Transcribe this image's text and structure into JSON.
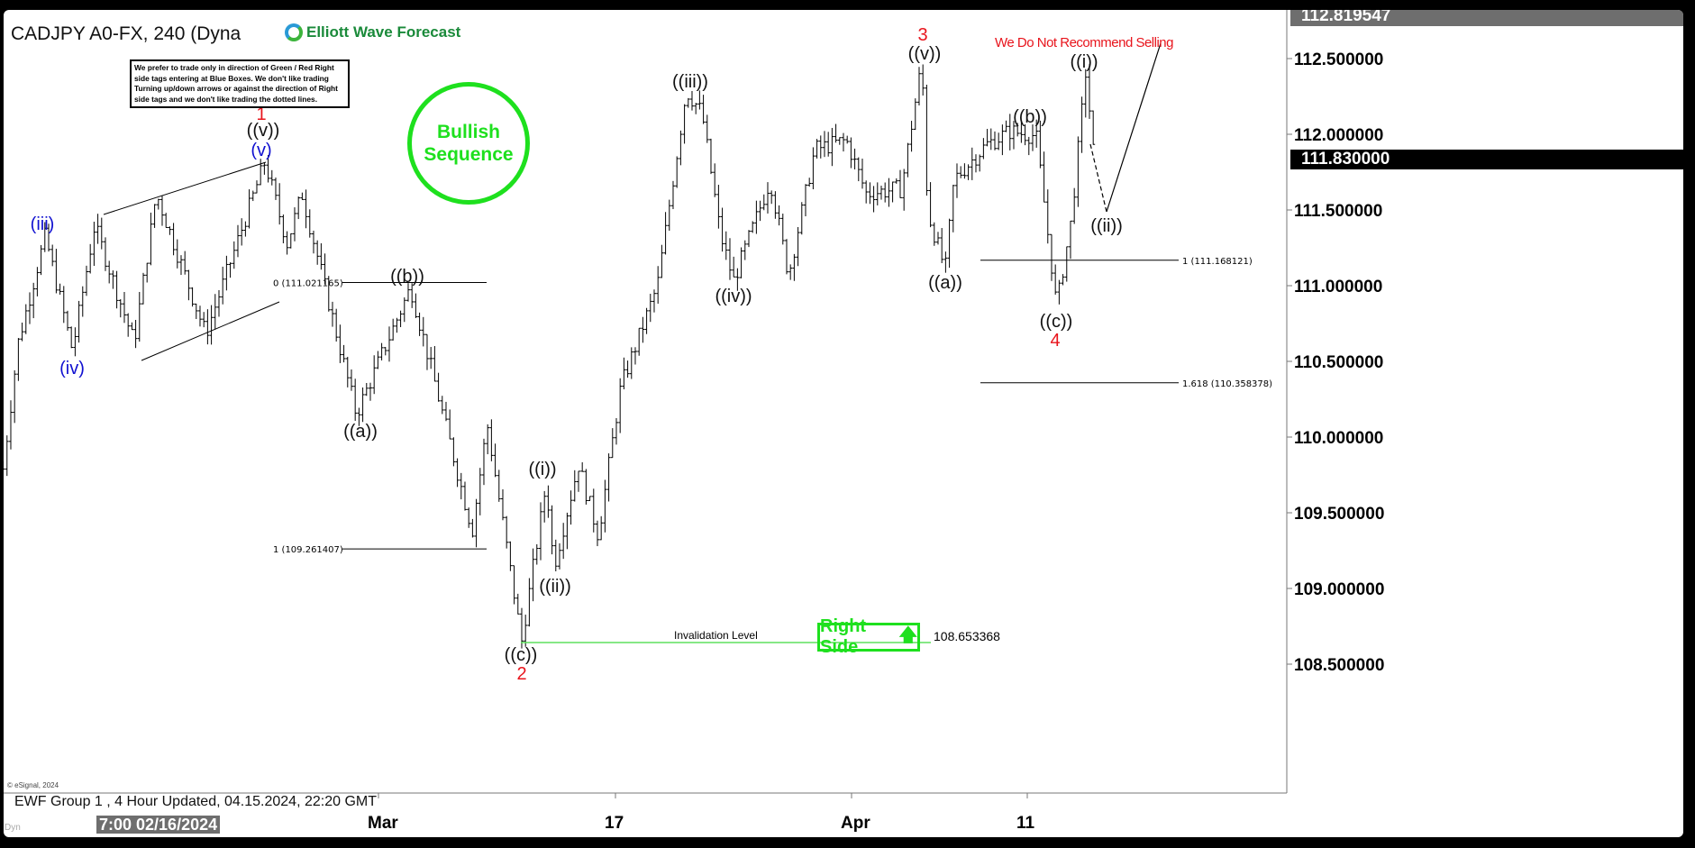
{
  "header": {
    "title": "CADJPY A0-FX, 240 (Dyna",
    "logo_text": "Elliott Wave Forecast"
  },
  "note": "We prefer to trade only in direction of Green / Red Right side tags entering at Blue Boxes. We don't like trading Turning up/down arrows or against the direction of Right side tags and we don't like trading the dotted lines.",
  "bullish_label": "Bullish Sequence",
  "warning": "We Do Not Recommend Selling",
  "right_side": {
    "label": "Right Side",
    "icon": "arrow-up-icon"
  },
  "footer": {
    "copyright": "© eSignal, 2024",
    "update": "EWF Group 1 , 4 Hour Updated, 04.15.2024, 22:20 GMT",
    "crosshair_date": "7:00 02/16/2024",
    "dyn": "Dyn"
  },
  "colors": {
    "green": "#1ee01e",
    "red": "#e8141c",
    "blue": "#1010d0",
    "tag_gray": "#6e6e6e"
  },
  "chart_data": {
    "type": "ohlc",
    "symbol": "CADJPY",
    "interval": "240",
    "yaxis": {
      "ticks": [
        112.5,
        112.0,
        111.5,
        111.0,
        110.5,
        110.0,
        109.5,
        109.0,
        108.5
      ],
      "tick_labels": [
        "112.500000",
        "112.000000",
        "111.500000",
        "111.000000",
        "110.500000",
        "110.000000",
        "109.500000",
        "109.000000",
        "108.500000"
      ],
      "range": [
        108.36,
        112.97
      ]
    },
    "xaxis": {
      "ticks": [
        {
          "date": "2024-03-01",
          "label": "Mar"
        },
        {
          "date": "2024-03-17",
          "label": "17"
        },
        {
          "date": "2024-04-01",
          "label": "Apr"
        },
        {
          "date": "2024-04-11",
          "label": "11"
        }
      ]
    },
    "price_tags": [
      {
        "value": "112.819547",
        "style": "gray"
      },
      {
        "value": "111.830000",
        "style": "black"
      }
    ],
    "price_path_approx": [
      [
        "2024-02-04T16:00",
        109.79
      ],
      [
        "2024-02-05T16:00",
        110.62
      ],
      [
        "2024-02-07T12:00",
        111.33
      ],
      [
        "2024-02-09T08:00",
        110.57
      ],
      [
        "2024-02-10T20:00",
        111.4
      ],
      [
        "2024-02-13T12:00",
        110.62
      ],
      [
        "2024-02-15T00:00",
        111.61
      ],
      [
        "2024-02-18T08:00",
        110.68
      ],
      [
        "2024-02-22T08:00",
        111.82
      ],
      [
        "2024-02-23T20:00",
        111.28
      ],
      [
        "2024-02-24T20:00",
        111.61
      ],
      [
        "2024-02-28T12:00",
        110.15
      ],
      [
        "2024-03-03T04:00",
        110.99
      ],
      [
        "2024-03-07T08:00",
        109.38
      ],
      [
        "2024-03-08T08:00",
        110.09
      ],
      [
        "2024-03-10T16:00",
        108.65
      ],
      [
        "2024-03-12T08:00",
        109.7
      ],
      [
        "2024-03-12T20:00",
        109.14
      ],
      [
        "2024-03-14T12:00",
        109.82
      ],
      [
        "2024-03-15T20:00",
        109.35
      ],
      [
        "2024-03-17T08:00",
        110.33
      ],
      [
        "2024-03-19T16:00",
        111.0
      ],
      [
        "2024-03-21T12:00",
        112.29
      ],
      [
        "2024-03-22T12:00",
        112.14
      ],
      [
        "2024-03-23T16:00",
        111.34
      ],
      [
        "2024-03-24T12:00",
        111.03
      ],
      [
        "2024-03-26T20:00",
        111.7
      ],
      [
        "2024-03-28T00:00",
        111.07
      ],
      [
        "2024-03-29T16:00",
        111.9
      ],
      [
        "2024-03-31T16:00",
        111.96
      ],
      [
        "2024-04-01T20:00",
        111.61
      ],
      [
        "2024-04-03T20:00",
        111.64
      ],
      [
        "2024-04-05T00:00",
        112.48
      ],
      [
        "2024-04-05T08:00",
        111.49
      ],
      [
        "2024-04-06T08:00",
        111.1
      ],
      [
        "2024-04-06T20:00",
        111.7
      ],
      [
        "2024-04-08T16:00",
        111.93
      ],
      [
        "2024-04-10T00:00",
        112.02
      ],
      [
        "2024-04-11T12:00",
        111.99
      ],
      [
        "2024-04-12T16:00",
        110.86
      ],
      [
        "2024-04-13T12:00",
        111.43
      ],
      [
        "2024-04-14T08:00",
        112.42
      ],
      [
        "2024-04-14T20:00",
        111.79
      ]
    ],
    "fib_levels": [
      {
        "label": "0 (111.021165)",
        "value": 111.021165
      },
      {
        "label": "1 (109.261407)",
        "value": 109.261407
      },
      {
        "label": "1 (111.168121)",
        "value": 111.168121
      },
      {
        "label": "1.618 (110.358378)",
        "value": 110.358378
      }
    ],
    "invalidation": {
      "label": "Invalidation Level",
      "value": "108.653368"
    },
    "wave_labels": {
      "red": [
        "1",
        "2",
        "3",
        "4"
      ],
      "blue": [
        "(iii)",
        "(iv)",
        "(v)"
      ],
      "black": [
        "((v))",
        "((a))",
        "((b))",
        "((c))",
        "((i))",
        "((ii))",
        "((iii))",
        "((iv))",
        "((v))",
        "((a))",
        "((b))",
        "((c))",
        "((i))",
        "((ii))"
      ]
    }
  }
}
